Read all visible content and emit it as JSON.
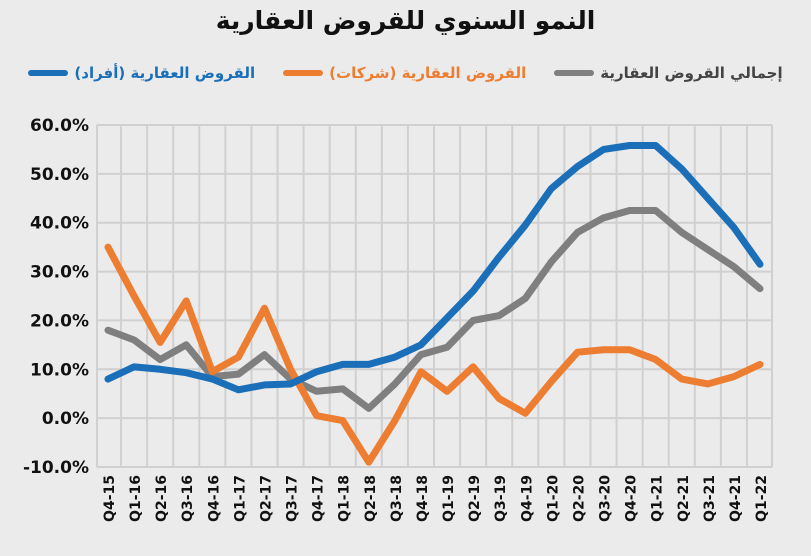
{
  "chart_data": {
    "type": "line",
    "title": "النمو السنوي للقروض العقارية",
    "xlabel": "",
    "ylabel": "",
    "ylim": [
      -10,
      60
    ],
    "yticks": [
      "-10.0%",
      "0.0%",
      "10.0%",
      "20.0%",
      "30.0%",
      "40.0%",
      "50.0%",
      "60.0%"
    ],
    "grid": true,
    "legend_position": "top",
    "categories": [
      "Q4-15",
      "Q1-16",
      "Q2-16",
      "Q3-16",
      "Q4-16",
      "Q1-17",
      "Q2-17",
      "Q3-17",
      "Q4-17",
      "Q1-18",
      "Q2-18",
      "Q3-18",
      "Q4-18",
      "Q1-19",
      "Q2-19",
      "Q3-19",
      "Q4-19",
      "Q1-20",
      "Q2-20",
      "Q3-20",
      "Q4-20",
      "Q1-21",
      "Q2-21",
      "Q3-21",
      "Q4-21",
      "Q1-22"
    ],
    "series": [
      {
        "name": "إجمالي القروض العقارية",
        "color": "#7f7f7f",
        "values": [
          18,
          16,
          12,
          15,
          8.5,
          9,
          13,
          8,
          5.5,
          6,
          2,
          7,
          13,
          14.5,
          20,
          21,
          24.5,
          32,
          38,
          41,
          42.5,
          42.5,
          38,
          34.5,
          31,
          26.5
        ]
      },
      {
        "name": "القروض العقارية (شركات)",
        "color": "#ed7d31",
        "values": [
          35,
          25,
          15.5,
          24,
          9.5,
          12.5,
          22.5,
          10,
          0.5,
          -0.5,
          -9,
          -0.5,
          9.5,
          5.5,
          10.5,
          4,
          1,
          7.5,
          13.5,
          14,
          14,
          12,
          8,
          7,
          8.5,
          11
        ]
      },
      {
        "name": "القروض العقارية (أفراد)",
        "color": "#1a6fb8",
        "values": [
          8,
          10.5,
          10,
          9.3,
          8,
          5.8,
          6.8,
          7,
          9.5,
          11,
          11,
          12.5,
          15,
          20.5,
          26,
          33,
          39.5,
          47,
          51.5,
          55,
          55.8,
          55.8,
          51,
          45,
          39,
          31.5
        ]
      }
    ]
  }
}
